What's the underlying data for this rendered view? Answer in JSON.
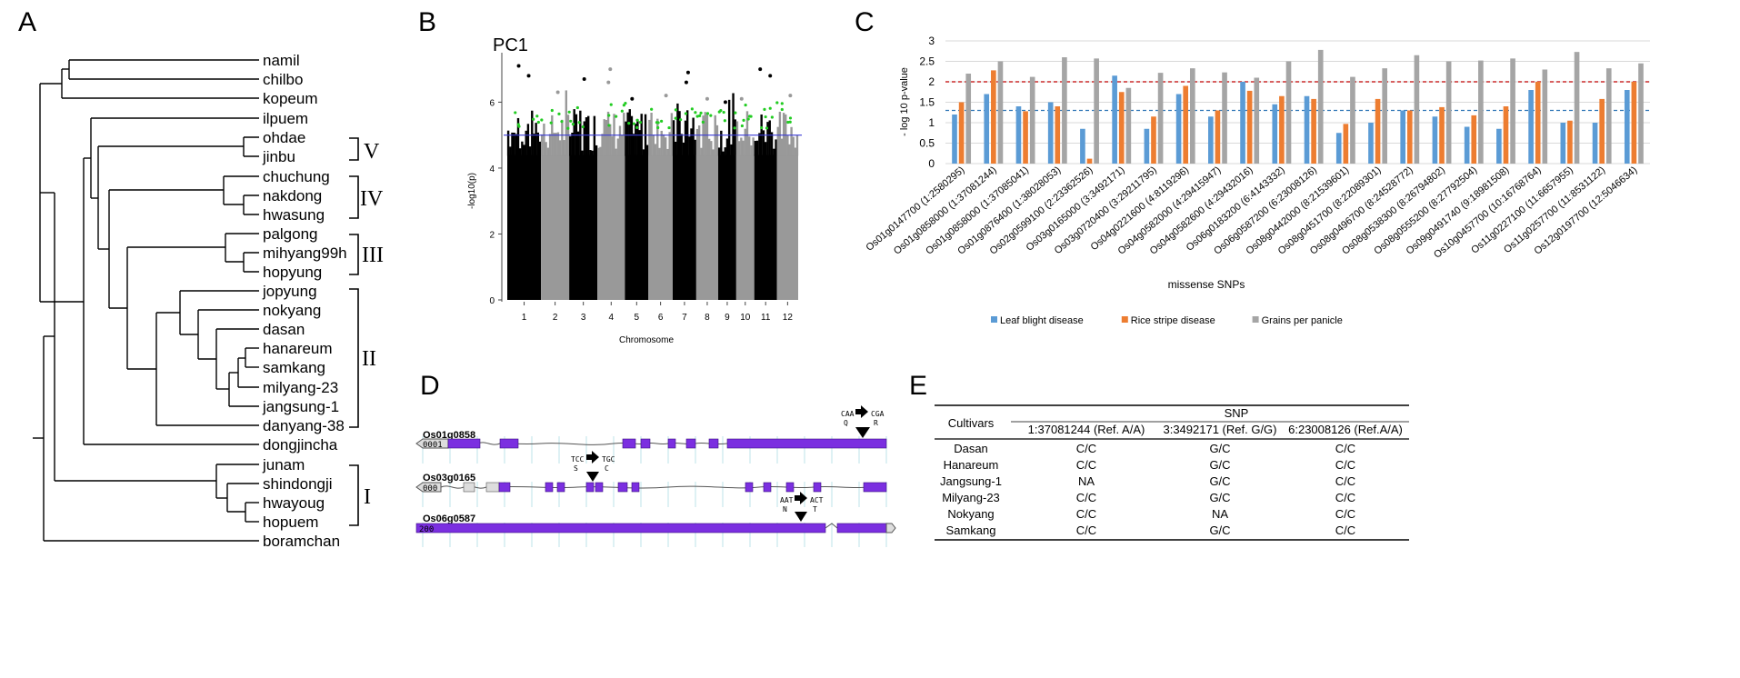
{
  "panel_labels": {
    "a": "A",
    "b": "B",
    "c": "C",
    "d": "D",
    "e": "E"
  },
  "tree": {
    "taxa": [
      "namil",
      "chilbo",
      "kopeum",
      "ilpuem",
      "ohdae",
      "jinbu",
      "chuchung",
      "nakdong",
      "hwasung",
      "palgong",
      "mihyang99h",
      "hopyung",
      "jopyung",
      "nokyang",
      "dasan",
      "hanareum",
      "samkang",
      "milyang-23",
      "jangsung-1",
      "danyang-38",
      "dongjincha",
      "junam",
      "shindongji",
      "hwayoug",
      "hopuem",
      "boramchan"
    ],
    "groups": [
      "V",
      "IV",
      "III",
      "II",
      "I"
    ]
  },
  "chart_data": [
    {
      "type": "scatter",
      "id": "manhattan",
      "title": "PC1",
      "xlabel": "Chromosome",
      "ylabel": "-log10(p)",
      "ylim": [
        0,
        7.5
      ],
      "yticks": [
        "0",
        "2",
        "4",
        "6"
      ],
      "categories": [
        "1",
        "2",
        "3",
        "4",
        "5",
        "6",
        "7",
        "8",
        "9",
        "10",
        "11",
        "12"
      ],
      "chromosome_size": [
        43,
        36,
        36,
        35,
        30,
        31,
        30,
        28,
        23,
        23,
        29,
        27
      ],
      "chromosome_color": [
        "#000000",
        "#999999",
        "#000000",
        "#999999",
        "#000000",
        "#999999",
        "#000000",
        "#999999",
        "#000000",
        "#999999",
        "#000000",
        "#999999"
      ],
      "significance_threshold": 5.0,
      "threshold_color": "#3b3bd6",
      "top_hits": [
        {
          "chr": "1",
          "y": 7.1
        },
        {
          "chr": "1",
          "y": 6.8
        },
        {
          "chr": "2",
          "y": 6.3
        },
        {
          "chr": "3",
          "y": 6.7
        },
        {
          "chr": "4",
          "y": 7.0
        },
        {
          "chr": "4",
          "y": 6.6
        },
        {
          "chr": "5",
          "y": 6.1
        },
        {
          "chr": "6",
          "y": 6.2
        },
        {
          "chr": "7",
          "y": 6.9
        },
        {
          "chr": "7",
          "y": 6.6
        },
        {
          "chr": "8",
          "y": 6.1
        },
        {
          "chr": "9",
          "y": 6.0
        },
        {
          "chr": "10",
          "y": 6.1
        },
        {
          "chr": "11",
          "y": 7.0
        },
        {
          "chr": "11",
          "y": 6.8
        },
        {
          "chr": "12",
          "y": 6.2
        }
      ],
      "highlight_color": "#22cc22"
    },
    {
      "type": "bar",
      "id": "snp-bars",
      "title": "",
      "xlabel": "missense SNPs",
      "ylabel": "- log 10 p-value",
      "ylim": [
        0,
        3
      ],
      "yticks": [
        "0",
        "0.5",
        "1",
        "1.5",
        "2",
        "2.5",
        "3"
      ],
      "categories": [
        "Os01g0147700 (1:2580295)",
        "Os01g0858000 (1:37081244)",
        "Os01g0858000 (1:37085041)",
        "Os01g0876400 (1:38028053)",
        "Os02g0599100 (2:23362526)",
        "Os03g0165000 (3:3492171)",
        "Os03g0720400 (3:29211795)",
        "Os04g0221600 (4:8119296)",
        "Os04g0582000 (4:29415947)",
        "Os04g0582600 (4:29432016)",
        "Os06g0183200 (6:4143332)",
        "Os06g0587200 (6:23008126)",
        "Os08g0442000 (8:21539601)",
        "Os08g0451700 (8:22089301)",
        "Os08g0496700 (8:24528772)",
        "Os08g0538300 (8:26794802)",
        "Os08g0555200 (8:27792504)",
        "Os09g0491740 (9:18981508)",
        "Os10g0457700 (10:16768764)",
        "Os11g0227100 (11:6657955)",
        "Os11g0257700 (11:8531122)",
        "Os12g0197700 (12:5046634)"
      ],
      "series": [
        {
          "name": "Leaf blight disease",
          "color": "#5b9bd5",
          "values": [
            1.2,
            1.7,
            1.4,
            1.5,
            0.85,
            2.15,
            0.85,
            1.7,
            1.15,
            2.0,
            1.45,
            1.65,
            0.75,
            1.0,
            1.3,
            1.15,
            0.9,
            0.85,
            1.8,
            1.0,
            1.0,
            1.8
          ]
        },
        {
          "name": "Rice stripe disease",
          "color": "#ed7d31",
          "values": [
            1.5,
            2.28,
            1.28,
            1.4,
            0.12,
            1.75,
            1.15,
            1.9,
            1.3,
            1.78,
            1.65,
            1.58,
            0.97,
            1.58,
            1.3,
            1.38,
            1.18,
            1.4,
            2.0,
            1.05,
            1.58,
            2.0
          ]
        },
        {
          "name": "Grains per panicle",
          "color": "#a5a5a5",
          "values": [
            2.2,
            2.5,
            2.12,
            2.6,
            2.57,
            1.85,
            2.22,
            2.33,
            2.23,
            2.1,
            2.5,
            2.78,
            2.12,
            2.33,
            2.65,
            2.5,
            2.52,
            2.57,
            2.3,
            2.73,
            2.33,
            2.45
          ]
        }
      ],
      "reference_lines": [
        {
          "y": 2.0,
          "color": "#c00000"
        },
        {
          "y": 1.3,
          "color": "#2e75b6"
        }
      ]
    }
  ],
  "gene_models": [
    {
      "name": "Os01g0858",
      "start_label": "0001",
      "left_codon": "CAA",
      "left_aa": "Q",
      "right_codon": "CGA",
      "right_aa": "R"
    },
    {
      "name": "Os03g0165",
      "start_label": "000",
      "left_codon": "TCC",
      "left_aa": "S",
      "right_codon": "TGC",
      "right_aa": "C"
    },
    {
      "name": "Os06g0587",
      "start_label": "200",
      "left_codon": "AAT",
      "left_aa": "N",
      "right_codon": "ACT",
      "right_aa": "T"
    }
  ],
  "snp_table": {
    "group_header": "SNP",
    "columns": [
      "Cultivars",
      "1:37081244  (Ref. A/A)",
      "3:3492171  (Ref. G/G)",
      "6:23008126  (Ref.A/A)"
    ],
    "rows": [
      [
        "Dasan",
        "C/C",
        "G/C",
        "C/C"
      ],
      [
        "Hanareum",
        "C/C",
        "G/C",
        "C/C"
      ],
      [
        "Jangsung-1",
        "NA",
        "G/C",
        "C/C"
      ],
      [
        "Milyang-23",
        "C/C",
        "G/C",
        "C/C"
      ],
      [
        "Nokyang",
        "C/C",
        "NA",
        "C/C"
      ],
      [
        "Samkang",
        "C/C",
        "G/C",
        "C/C"
      ]
    ]
  }
}
